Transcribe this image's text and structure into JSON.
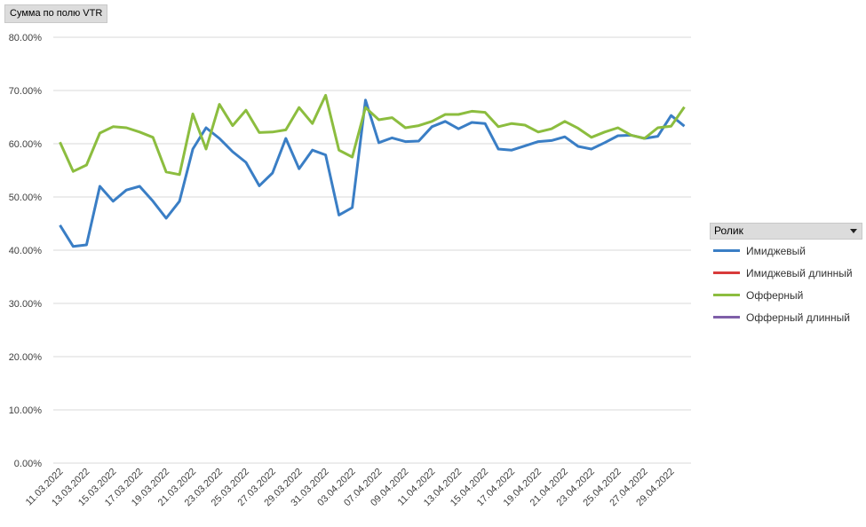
{
  "field_button": "Сумма по полю VTR",
  "legend": {
    "title": "Ролик"
  },
  "chart_data": {
    "type": "line",
    "title": "",
    "xlabel": "",
    "ylabel": "",
    "ylim": [
      0,
      80
    ],
    "y_ticks": [
      "0.00%",
      "10.00%",
      "20.00%",
      "30.00%",
      "40.00%",
      "50.00%",
      "60.00%",
      "70.00%",
      "80.00%"
    ],
    "grid": true,
    "legend_position": "right",
    "x_tick_labels": [
      "11.03.2022",
      "13.03.2022",
      "15.03.2022",
      "17.03.2022",
      "19.03.2022",
      "21.03.2022",
      "23.03.2022",
      "25.03.2022",
      "27.03.2022",
      "29.03.2022",
      "31.03.2022",
      "03.04.2022",
      "07.04.2022",
      "09.04.2022",
      "11.04.2022",
      "13.04.2022",
      "15.04.2022",
      "17.04.2022",
      "19.04.2022",
      "21.04.2022",
      "23.04.2022",
      "25.04.2022",
      "27.04.2022",
      "29.04.2022"
    ],
    "series": [
      {
        "name": "Имиджевый",
        "color": "#3a7ec5",
        "values": [
          44.7,
          40.7,
          41.0,
          52.0,
          49.2,
          51.3,
          52.0,
          49.2,
          46.0,
          49.2,
          59.0,
          63.0,
          61.0,
          58.5,
          56.5,
          52.1,
          54.5,
          61.0,
          55.3,
          58.8,
          57.9,
          46.6,
          48.0,
          68.2,
          60.2,
          61.1,
          60.4,
          60.5,
          63.2,
          64.2,
          62.8,
          64.0,
          63.8,
          59.0,
          58.8,
          59.6,
          60.4,
          60.6,
          61.3,
          59.5,
          59.0,
          60.2,
          61.5,
          61.6,
          61.0,
          61.4,
          65.3,
          63.3
        ]
      },
      {
        "name": "Имиджевый длинный",
        "color": "#d83b3b",
        "values": []
      },
      {
        "name": "Офферный",
        "color": "#8cbd3f",
        "values": [
          60.3,
          54.8,
          56.0,
          62.0,
          63.2,
          63.0,
          62.2,
          61.2,
          54.7,
          54.2,
          65.6,
          59.0,
          67.4,
          63.4,
          66.3,
          62.1,
          62.2,
          62.6,
          66.8,
          63.8,
          69.1,
          58.8,
          57.5,
          66.8,
          64.5,
          64.9,
          63.0,
          63.4,
          64.2,
          65.5,
          65.5,
          66.1,
          65.9,
          63.2,
          63.8,
          63.5,
          62.2,
          62.8,
          64.2,
          62.9,
          61.2,
          62.2,
          63.0,
          61.6,
          61.0,
          63.0,
          63.3,
          66.9
        ]
      },
      {
        "name": "Офферный длинный",
        "color": "#7f5fa8",
        "values": []
      }
    ]
  }
}
